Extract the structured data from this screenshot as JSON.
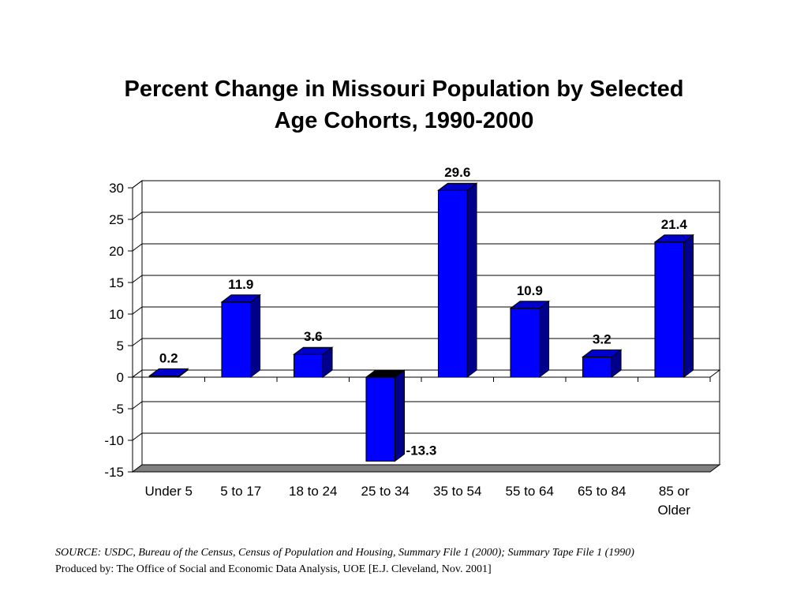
{
  "title_lines": [
    "Percent Change in Missouri Population by Selected",
    "Age Cohorts, 1990-2000"
  ],
  "chart_data": {
    "type": "bar",
    "title": "Percent Change in Missouri Population by Selected Age Cohorts, 1990-2000",
    "categories": [
      "Under 5",
      "5 to 17",
      "18 to 24",
      "25 to 34",
      "35 to 54",
      "55 to 64",
      "65 to 84",
      "85 or Older"
    ],
    "values": [
      0.2,
      11.9,
      3.6,
      -13.3,
      29.6,
      10.9,
      3.2,
      21.4
    ],
    "data_labels": [
      "0.2",
      "11.9",
      "3.6",
      "-13.3",
      "29.6",
      "10.9",
      "3.2",
      "21.4"
    ],
    "ylim": [
      -15,
      30
    ],
    "yticks": [
      30,
      25,
      20,
      15,
      10,
      5,
      0,
      -5,
      -10,
      -15
    ],
    "grid": true,
    "bar_color": "#0000ff"
  },
  "source": "SOURCE:  USDC, Bureau of the Census, Census of Population and Housing, Summary File 1 (2000); Summary Tape File 1 (1990)",
  "produced_by": "Produced by:  The Office of Social and Economic Data Analysis, UOE [E.J. Cleveland, Nov. 2001]"
}
